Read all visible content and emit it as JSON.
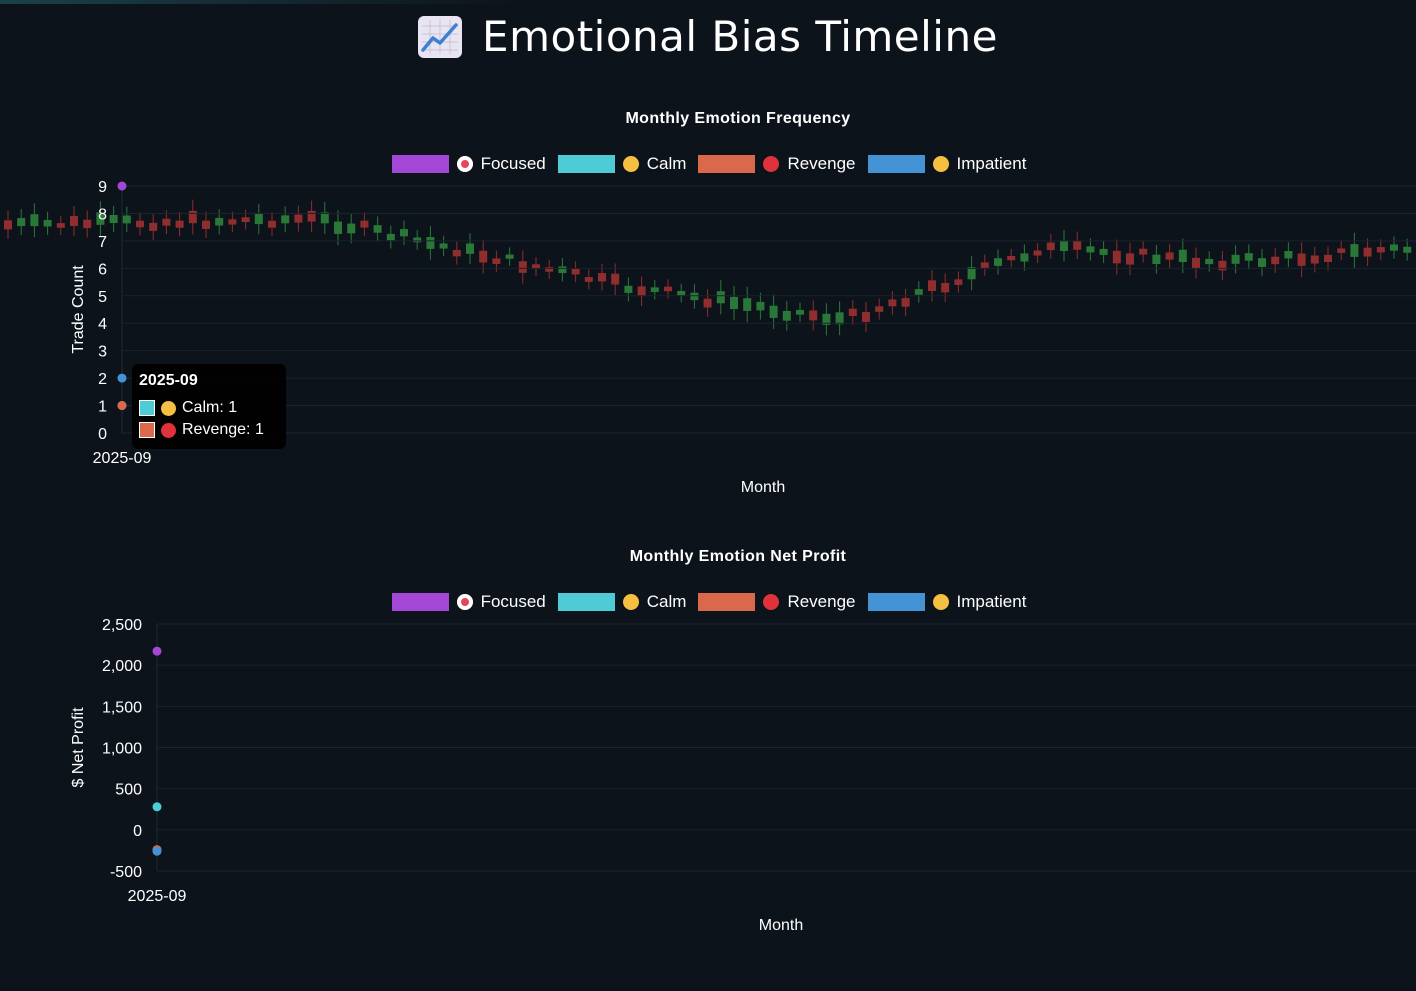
{
  "page": {
    "title": "Emotional Bias Timeline",
    "title_icon": "chart-increasing-icon"
  },
  "colors": {
    "background": "#0d131b",
    "focused": "#a446d6",
    "calm": "#4ecbd4",
    "revenge": "#d9694a",
    "impatient": "#4493d4",
    "candle_up": "#2f8a3e",
    "candle_down": "#a83232"
  },
  "legend": [
    {
      "key": "focused",
      "label": "Focused",
      "icon": "direct-hit-icon",
      "color": "#a446d6"
    },
    {
      "key": "calm",
      "label": "Calm",
      "icon": "relieved-face-icon",
      "color": "#4ecbd4"
    },
    {
      "key": "revenge",
      "label": "Revenge",
      "icon": "angry-face-icon",
      "color": "#d9694a"
    },
    {
      "key": "impatient",
      "label": "Impatient",
      "icon": "face-rolling-eyes-icon",
      "color": "#4493d4"
    }
  ],
  "chart_data": [
    {
      "type": "scatter",
      "title": "Monthly Emotion Frequency",
      "xlabel": "Month",
      "ylabel": "Trade Count",
      "categories": [
        "2025-09"
      ],
      "ylim": [
        0,
        9
      ],
      "yticks": [
        "0",
        "1",
        "2",
        "3",
        "4",
        "5",
        "6",
        "7",
        "8",
        "9"
      ],
      "grid": true,
      "legend_position": "top",
      "series": [
        {
          "name": "Focused",
          "values": [
            9
          ]
        },
        {
          "name": "Calm",
          "values": [
            1
          ]
        },
        {
          "name": "Revenge",
          "values": [
            1
          ]
        },
        {
          "name": "Impatient",
          "values": [
            2
          ]
        }
      ],
      "tooltip": {
        "title": "2025-09",
        "rows": [
          {
            "label": "Calm: 1",
            "color": "#4ecbd4"
          },
          {
            "label": "Revenge: 1",
            "color": "#d9694a"
          }
        ]
      }
    },
    {
      "type": "scatter",
      "title": "Monthly Emotion Net Profit",
      "xlabel": "Month",
      "ylabel": "$ Net Profit",
      "categories": [
        "2025-09"
      ],
      "ylim": [
        -500,
        2500
      ],
      "yticks": [
        "-500",
        "0",
        "500",
        "1,000",
        "1,500",
        "2,000",
        "2,500"
      ],
      "grid": true,
      "legend_position": "top",
      "series": [
        {
          "name": "Focused",
          "values": [
            2170
          ]
        },
        {
          "name": "Calm",
          "values": [
            280
          ]
        },
        {
          "name": "Revenge",
          "values": [
            -240
          ]
        },
        {
          "name": "Impatient",
          "values": [
            -260
          ]
        }
      ]
    }
  ]
}
